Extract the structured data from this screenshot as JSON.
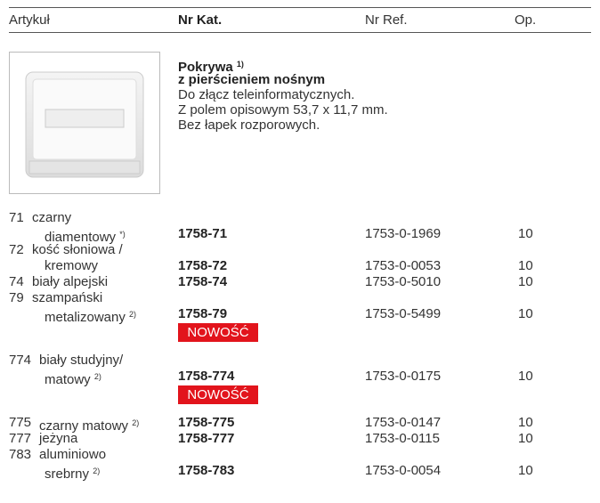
{
  "header": {
    "columns": [
      "Artykuł",
      "Nr Kat.",
      "Nr Ref.",
      "Op."
    ]
  },
  "product": {
    "title": "Pokrywa",
    "title_note": "1)",
    "subtitle": "z pierścieniem nośnym",
    "lines": [
      "Do złącz teleinformatycznych.",
      "Z polem opisowym  53,7 x 11,7 mm.",
      "Bez łapek rozporowych."
    ]
  },
  "rows": [
    {
      "number": "71",
      "name": [
        {
          "text": "czarny"
        },
        {
          "text": "diamentowy",
          "note": "*)"
        }
      ],
      "cat": "1758-71",
      "ref": "1753-0-1969",
      "op": "10"
    },
    {
      "number": "72",
      "name": [
        {
          "text": "kość słoniowa /"
        },
        {
          "text": "kremowy"
        }
      ],
      "cat": "1758-72",
      "ref": "1753-0-0053",
      "op": "10"
    },
    {
      "number": "74",
      "name": [
        {
          "text": "biały alpejski"
        }
      ],
      "cat": "1758-74",
      "ref": "1753-0-5010",
      "op": "10"
    },
    {
      "number": "79",
      "name": [
        {
          "text": "szampański"
        },
        {
          "text": "metalizowany",
          "note": "2)"
        }
      ],
      "cat": "1758-79",
      "ref": "1753-0-5499",
      "op": "10",
      "badge": "NOWOŚĆ"
    },
    {
      "number": "774",
      "name": [
        {
          "text": "biały studyjny/"
        },
        {
          "text": "matowy",
          "note": "2)"
        }
      ],
      "cat": "1758-774",
      "ref": "1753-0-0175",
      "op": "10",
      "badge": "NOWOŚĆ"
    },
    {
      "number": "775",
      "name": [
        {
          "text": "czarny matowy",
          "note": "2)"
        }
      ],
      "cat": "1758-775",
      "ref": "1753-0-0147",
      "op": "10"
    },
    {
      "number": "777",
      "name": [
        {
          "text": "jeżyna"
        }
      ],
      "cat": "1758-777",
      "ref": "1753-0-0115",
      "op": "10"
    },
    {
      "number": "783",
      "name": [
        {
          "text": "aluminiowo"
        },
        {
          "text": "srebrny",
          "note": "2)"
        }
      ],
      "cat": "1758-783",
      "ref": "1753-0-0054",
      "op": "10"
    }
  ]
}
